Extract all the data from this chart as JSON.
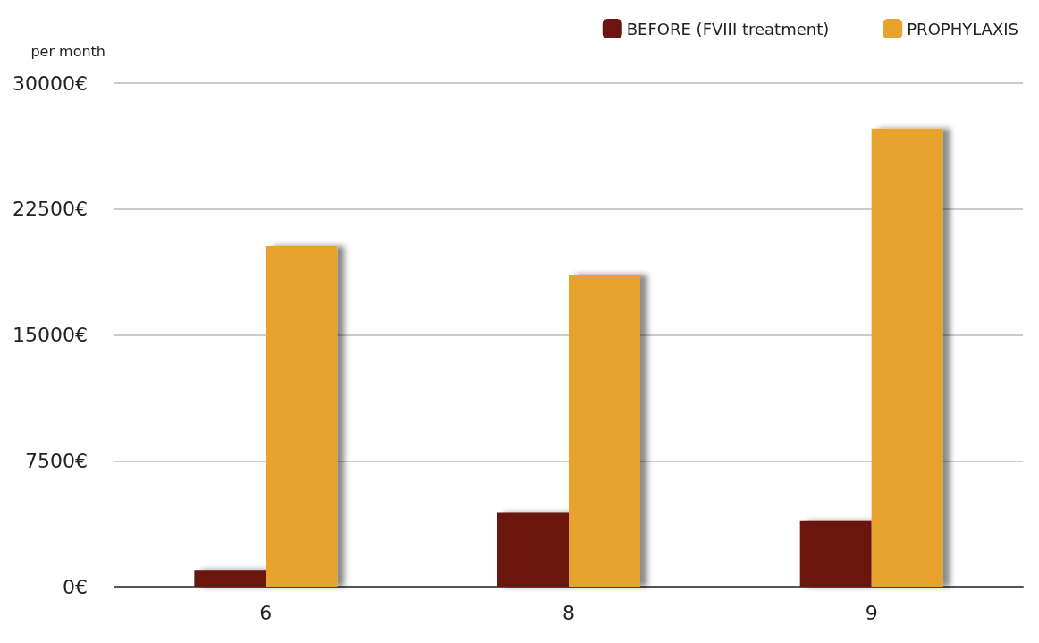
{
  "chart_data": {
    "type": "bar",
    "ylabel": "per month",
    "categories": [
      "6",
      "8",
      "9"
    ],
    "series": [
      {
        "name": "BEFORE (FVIII treatment)",
        "color": "#6b1410",
        "values": [
          1000,
          4400,
          3900
        ]
      },
      {
        "name": "PROPHYLAXIS",
        "color": "#e8a22e",
        "values": [
          20300,
          18600,
          27300
        ]
      }
    ],
    "ylim": [
      0,
      30000
    ],
    "yticks": [
      {
        "value": 0,
        "label": "0€"
      },
      {
        "value": 7500,
        "label": "7500€"
      },
      {
        "value": 15000,
        "label": "15000€"
      },
      {
        "value": 22500,
        "label": "22500€"
      },
      {
        "value": 30000,
        "label": "30000€"
      }
    ],
    "grid": "y",
    "legend": "top right"
  }
}
